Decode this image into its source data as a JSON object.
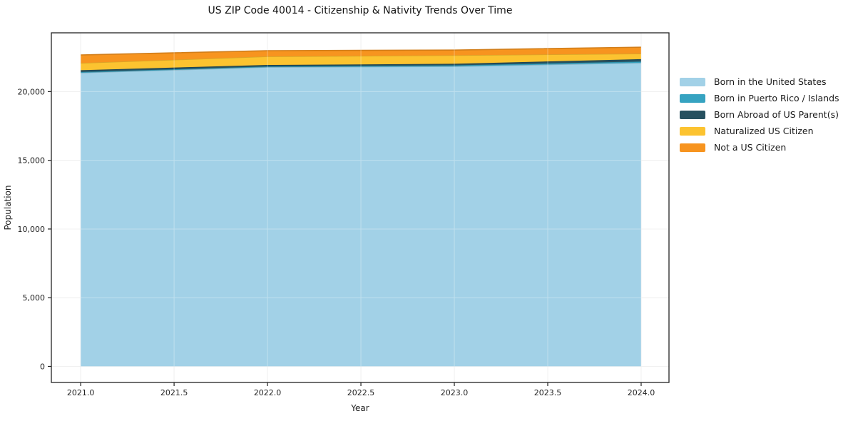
{
  "title": "US ZIP Code 40014 - Citizenship & Nativity Trends Over Time",
  "chart_data": {
    "type": "area",
    "stacked": true,
    "title": "US ZIP Code 40014 - Citizenship & Nativity Trends Over Time",
    "xlabel": "Year",
    "ylabel": "Population",
    "x": [
      2021,
      2022,
      2023,
      2024
    ],
    "series": [
      {
        "name": "Born in the United States",
        "color": "#a2d1e7",
        "values": [
          21370,
          21780,
          21835,
          22095
        ]
      },
      {
        "name": "Born in Puerto Rico / Islands",
        "color": "#36a3c1",
        "values": [
          60,
          50,
          80,
          100
        ]
      },
      {
        "name": "Born Abroad of US Parent(s)",
        "color": "#26505f",
        "values": [
          130,
          110,
          110,
          170
        ]
      },
      {
        "name": "Naturalized US Citizen",
        "color": "#fcc330",
        "values": [
          520,
          620,
          620,
          400
        ]
      },
      {
        "name": "Not a US Citizen",
        "color": "#f7941f",
        "values": [
          590,
          420,
          380,
          470
        ]
      }
    ],
    "xlim": [
      2020.843,
      2024.149
    ],
    "ylim": [
      -1170,
      24280
    ],
    "xticks": {
      "values": [
        2021.0,
        2021.5,
        2022.0,
        2022.5,
        2023.0,
        2023.5,
        2024.0
      ],
      "labels": [
        "2021.0",
        "2021.5",
        "2022.0",
        "2022.5",
        "2023.0",
        "2023.5",
        "2024.0"
      ]
    },
    "yticks": {
      "values": [
        0,
        5000,
        10000,
        15000,
        20000
      ],
      "labels": [
        "0",
        "5,000",
        "10,000",
        "15,000",
        "20,000"
      ]
    },
    "grid": true,
    "legend_position": "right",
    "colors": {
      "axis": "#222222",
      "grid": "#e9e9e9",
      "grid_over_area": "#ffffff",
      "tick_label": "#222222",
      "background": "#ffffff"
    }
  }
}
